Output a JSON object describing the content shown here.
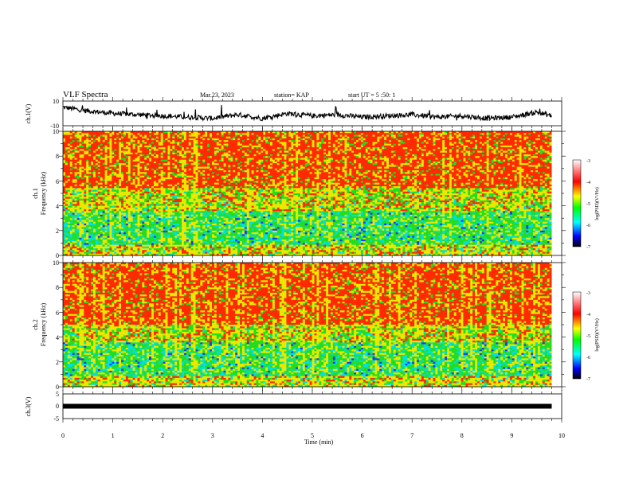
{
  "header": {
    "title": "VLF Spectra",
    "date": "Mar.23, 2023",
    "station": "station= KAP",
    "start_ut": "start  UT  =   5  :50: 1"
  },
  "colors": {
    "red": "#ff2a00",
    "yellow": "#e8e800",
    "green": "#22dd22",
    "cyan": "#00e0e0",
    "blue": "#1a3aff",
    "trace": "#000000"
  },
  "chart_data": [
    {
      "type": "line",
      "panel": "ch1-waveform",
      "ylabel": "ch.1(V)",
      "xlim": [
        0,
        10
      ],
      "ylim": [
        -10,
        10
      ],
      "y_ticks": [
        "10",
        "-10"
      ],
      "x": [
        0,
        0.5,
        1,
        1.5,
        2,
        2.5,
        3,
        3.5,
        4,
        4.5,
        5,
        5.5,
        6,
        6.5,
        7,
        7.5,
        8,
        8.5,
        9,
        9.5,
        9.8
      ],
      "y": [
        5,
        2,
        0,
        -1,
        -2,
        -3,
        -4,
        -1,
        -4,
        0,
        -2,
        -1,
        -3,
        -2,
        -1,
        -3,
        -2,
        -4,
        -3,
        1,
        -2
      ]
    },
    {
      "type": "heatmap",
      "panel": "ch1-spectrogram",
      "ylabel_top": "ch.1",
      "ylabel": "Frequency  (kHz)",
      "xlim": [
        0,
        9.8
      ],
      "ylim": [
        0,
        10
      ],
      "y_ticks": [
        "0",
        "2",
        "4",
        "6",
        "8",
        "10"
      ],
      "colorbar": {
        "label": "log(PSD)(V²/Hz)",
        "range": [
          -7,
          -3
        ],
        "ticks": [
          "-3",
          "-4",
          "-5",
          "-6",
          "-7"
        ]
      },
      "bands": [
        {
          "from_khz": 0,
          "to_khz": 0.8,
          "dominant": "yellow"
        },
        {
          "from_khz": 0.8,
          "to_khz": 3.5,
          "dominant": "green/cyan"
        },
        {
          "from_khz": 3.5,
          "to_khz": 5.5,
          "dominant": "yellow/green"
        },
        {
          "from_khz": 5.5,
          "to_khz": 10,
          "dominant": "red"
        }
      ]
    },
    {
      "type": "heatmap",
      "panel": "ch2-spectrogram",
      "ylabel_top": "ch.2",
      "ylabel": "Frequency  (kHz)",
      "xlim": [
        0,
        9.8
      ],
      "ylim": [
        0,
        10
      ],
      "y_ticks": [
        "0",
        "2",
        "4",
        "6",
        "8",
        "10"
      ],
      "colorbar": {
        "label": "log(PSD)(V²/Hz)",
        "range": [
          -7,
          -3
        ],
        "ticks": [
          "-3",
          "-4",
          "-5",
          "-6",
          "-7"
        ]
      },
      "bands": [
        {
          "from_khz": 0,
          "to_khz": 0.8,
          "dominant": "yellow"
        },
        {
          "from_khz": 0.8,
          "to_khz": 3.5,
          "dominant": "green/cyan"
        },
        {
          "from_khz": 3.5,
          "to_khz": 5,
          "dominant": "yellow/green"
        },
        {
          "from_khz": 5,
          "to_khz": 10,
          "dominant": "red"
        }
      ]
    },
    {
      "type": "line",
      "panel": "ch3-waveform",
      "ylabel": "ch.3(V)",
      "xlim": [
        0,
        10
      ],
      "ylim": [
        -5,
        5
      ],
      "y_ticks": [
        "5",
        "0",
        "-5"
      ],
      "x": [
        0,
        9.8
      ],
      "y": [
        0,
        0
      ]
    }
  ],
  "x_axis": {
    "label": "Time  (min)",
    "ticks": [
      "0",
      "1",
      "2",
      "3",
      "4",
      "5",
      "6",
      "7",
      "8",
      "9",
      "10"
    ]
  }
}
